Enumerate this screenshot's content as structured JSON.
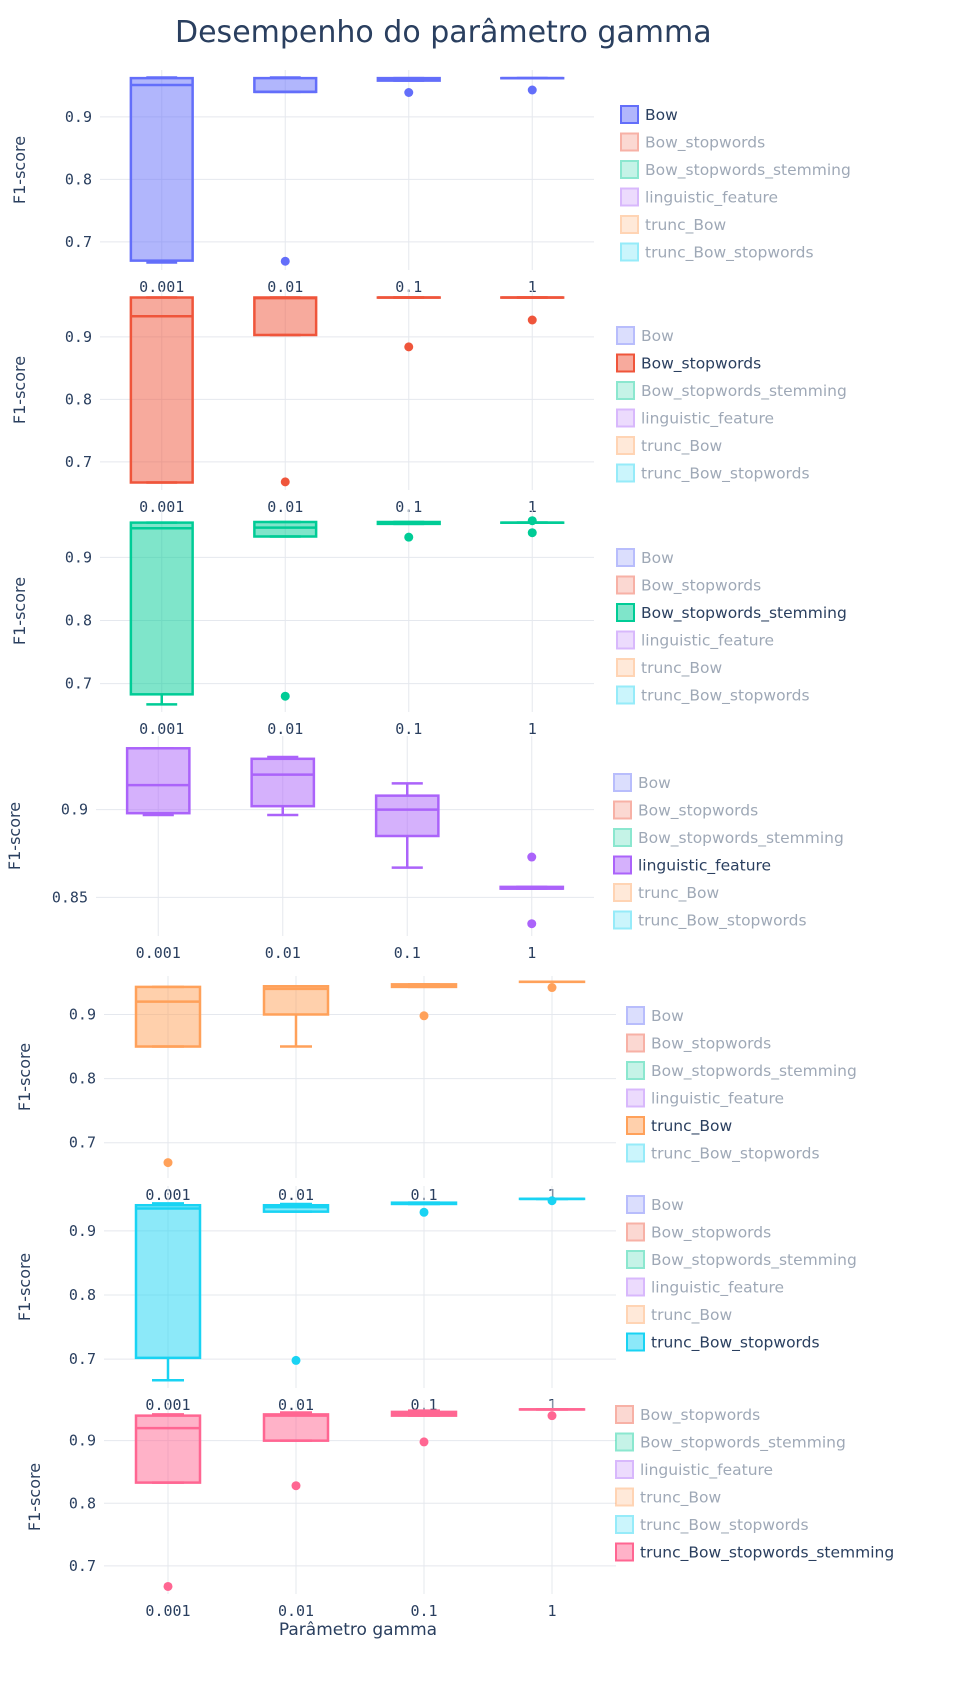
{
  "chart_data": {
    "type": "box",
    "title": "Desempenho do parâmetro gamma",
    "xlabel": "Parâmetro gamma",
    "ylabel": "F1-score",
    "categories": [
      "0.001",
      "0.01",
      "0.1",
      "1"
    ],
    "legend_position": "right",
    "legend_items": [
      "Bow",
      "Bow_stopwords",
      "Bow_stopwords_stemming",
      "linguistic_feature",
      "trunc_Bow",
      "trunc_Bow_stopwords",
      "trunc_Bow_stopwords_stemming"
    ],
    "panels": [
      {
        "name": "Bow",
        "color": "#636efa",
        "ylim": [
          0.655,
          0.975
        ],
        "yticks": [
          "0.7",
          "0.8",
          "0.9"
        ],
        "legend": [
          "Bow",
          "Bow_stopwords",
          "Bow_stopwords_stemming",
          "linguistic_feature",
          "trunc_Bow",
          "trunc_Bow_stopwords"
        ],
        "boxes": [
          {
            "min": 0.667,
            "q1": 0.67,
            "median": 0.951,
            "q3": 0.962,
            "max": 0.963,
            "outliers": []
          },
          {
            "min": 0.94,
            "q1": 0.94,
            "median": 0.94,
            "q3": 0.962,
            "max": 0.963,
            "outliers": [
              0.669
            ]
          },
          {
            "min": 0.958,
            "q1": 0.958,
            "median": 0.961,
            "q3": 0.962,
            "max": 0.962,
            "outliers": [
              0.939
            ]
          },
          {
            "min": 0.962,
            "q1": 0.962,
            "median": 0.962,
            "q3": 0.962,
            "max": 0.962,
            "outliers": [
              0.943
            ]
          }
        ]
      },
      {
        "name": "Bow_stopwords",
        "color": "#ef553b",
        "ylim": [
          0.655,
          0.975
        ],
        "yticks": [
          "0.7",
          "0.8",
          "0.9"
        ],
        "legend": [
          "Bow",
          "Bow_stopwords",
          "Bow_stopwords_stemming",
          "linguistic_feature",
          "trunc_Bow",
          "trunc_Bow_stopwords"
        ],
        "boxes": [
          {
            "min": 0.667,
            "q1": 0.667,
            "median": 0.933,
            "q3": 0.963,
            "max": 0.963,
            "outliers": []
          },
          {
            "min": 0.903,
            "q1": 0.903,
            "median": 0.962,
            "q3": 0.963,
            "max": 0.963,
            "outliers": [
              0.668
            ]
          },
          {
            "min": 0.963,
            "q1": 0.963,
            "median": 0.963,
            "q3": 0.963,
            "max": 0.963,
            "outliers": [
              0.884
            ]
          },
          {
            "min": 0.963,
            "q1": 0.963,
            "median": 0.963,
            "q3": 0.963,
            "max": 0.963,
            "outliers": [
              0.927
            ]
          }
        ]
      },
      {
        "name": "Bow_stopwords_stemming",
        "color": "#00cc96",
        "ylim": [
          0.655,
          0.975
        ],
        "yticks": [
          "0.7",
          "0.8",
          "0.9"
        ],
        "legend": [
          "Bow",
          "Bow_stopwords",
          "Bow_stopwords_stemming",
          "linguistic_feature",
          "trunc_Bow",
          "trunc_Bow_stopwords"
        ],
        "boxes": [
          {
            "min": 0.667,
            "q1": 0.683,
            "median": 0.946,
            "q3": 0.955,
            "max": 0.955,
            "outliers": []
          },
          {
            "min": 0.933,
            "q1": 0.933,
            "median": 0.947,
            "q3": 0.956,
            "max": 0.956,
            "outliers": [
              0.68
            ]
          },
          {
            "min": 0.953,
            "q1": 0.953,
            "median": 0.955,
            "q3": 0.956,
            "max": 0.956,
            "outliers": [
              0.932
            ]
          },
          {
            "min": 0.955,
            "q1": 0.955,
            "median": 0.955,
            "q3": 0.955,
            "max": 0.955,
            "outliers": [
              0.958,
              0.939
            ]
          }
        ]
      },
      {
        "name": "linguistic_feature",
        "color": "#ab63fa",
        "ylim": [
          0.828,
          0.942
        ],
        "yticks": [
          "0.85",
          "0.9"
        ],
        "legend": [
          "Bow",
          "Bow_stopwords",
          "Bow_stopwords_stemming",
          "linguistic_feature",
          "trunc_Bow",
          "trunc_Bow_stopwords"
        ],
        "boxes": [
          {
            "min": 0.897,
            "q1": 0.898,
            "median": 0.914,
            "q3": 0.935,
            "max": 0.935,
            "outliers": []
          },
          {
            "min": 0.897,
            "q1": 0.902,
            "median": 0.92,
            "q3": 0.929,
            "max": 0.93,
            "outliers": []
          },
          {
            "min": 0.867,
            "q1": 0.885,
            "median": 0.9,
            "q3": 0.908,
            "max": 0.915,
            "outliers": []
          },
          {
            "min": 0.855,
            "q1": 0.855,
            "median": 0.855,
            "q3": 0.856,
            "max": 0.856,
            "outliers": [
              0.873,
              0.835
            ]
          }
        ]
      },
      {
        "name": "trunc_Bow",
        "color": "#ffa15a",
        "ylim": [
          0.645,
          0.96
        ],
        "yticks": [
          "0.7",
          "0.8",
          "0.9"
        ],
        "legend": [
          "Bow",
          "Bow_stopwords",
          "Bow_stopwords_stemming",
          "linguistic_feature",
          "trunc_Bow",
          "trunc_Bow_stopwords"
        ],
        "boxes": [
          {
            "min": 0.85,
            "q1": 0.85,
            "median": 0.92,
            "q3": 0.943,
            "max": 0.943,
            "outliers": [
              0.669
            ]
          },
          {
            "min": 0.85,
            "q1": 0.9,
            "median": 0.94,
            "q3": 0.944,
            "max": 0.944,
            "outliers": []
          },
          {
            "min": 0.943,
            "q1": 0.943,
            "median": 0.944,
            "q3": 0.947,
            "max": 0.947,
            "outliers": [
              0.898
            ]
          },
          {
            "min": 0.951,
            "q1": 0.951,
            "median": 0.951,
            "q3": 0.951,
            "max": 0.951,
            "outliers": [
              0.942
            ]
          }
        ]
      },
      {
        "name": "trunc_Bow_stopwords",
        "color": "#19d3f3",
        "ylim": [
          0.655,
          0.97
        ],
        "yticks": [
          "0.7",
          "0.8",
          "0.9"
        ],
        "legend": [
          "Bow",
          "Bow_stopwords",
          "Bow_stopwords_stemming",
          "linguistic_feature",
          "trunc_Bow",
          "trunc_Bow_stopwords"
        ],
        "boxes": [
          {
            "min": 0.667,
            "q1": 0.702,
            "median": 0.935,
            "q3": 0.94,
            "max": 0.943,
            "outliers": []
          },
          {
            "min": 0.93,
            "q1": 0.93,
            "median": 0.937,
            "q3": 0.94,
            "max": 0.942,
            "outliers": [
              0.698
            ]
          },
          {
            "min": 0.942,
            "q1": 0.942,
            "median": 0.943,
            "q3": 0.944,
            "max": 0.944,
            "outliers": [
              0.929
            ]
          },
          {
            "min": 0.95,
            "q1": 0.95,
            "median": 0.95,
            "q3": 0.95,
            "max": 0.95,
            "outliers": [
              0.947
            ]
          }
        ]
      },
      {
        "name": "trunc_Bow_stopwords_stemming",
        "color": "#ff6692",
        "ylim": [
          0.655,
          0.965
        ],
        "yticks": [
          "0.7",
          "0.8",
          "0.9"
        ],
        "legend": [
          "Bow_stopwords",
          "Bow_stopwords_stemming",
          "linguistic_feature",
          "trunc_Bow",
          "trunc_Bow_stopwords",
          "trunc_Bow_stopwords_stemming"
        ],
        "boxes": [
          {
            "min": 0.833,
            "q1": 0.833,
            "median": 0.92,
            "q3": 0.94,
            "max": 0.942,
            "outliers": [
              0.667
            ]
          },
          {
            "min": 0.9,
            "q1": 0.9,
            "median": 0.94,
            "q3": 0.942,
            "max": 0.945,
            "outliers": [
              0.828
            ]
          },
          {
            "min": 0.94,
            "q1": 0.94,
            "median": 0.943,
            "q3": 0.946,
            "max": 0.948,
            "outliers": [
              0.898
            ]
          },
          {
            "min": 0.95,
            "q1": 0.95,
            "median": 0.95,
            "q3": 0.95,
            "max": 0.95,
            "outliers": [
              0.94
            ]
          }
        ]
      }
    ],
    "colors": {
      "Bow": "#636efa",
      "Bow_stopwords": "#ef553b",
      "Bow_stopwords_stemming": "#00cc96",
      "linguistic_feature": "#ab63fa",
      "trunc_Bow": "#ffa15a",
      "trunc_Bow_stopwords": "#19d3f3",
      "trunc_Bow_stopwords_stemming": "#ff6692"
    }
  }
}
